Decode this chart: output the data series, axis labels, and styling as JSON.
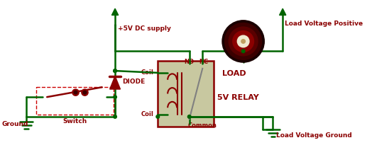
{
  "bg_color": "#ffffff",
  "wire_color": "#006400",
  "component_color": "#8b0000",
  "relay_fill": "#c8c8a0",
  "relay_border": "#8b0000",
  "text_color": "#8b0000",
  "labels": {
    "ground": "Ground",
    "switch": "Switch",
    "diode": "DIODE",
    "coil_top": "Coil",
    "coil_bot": "Coil",
    "no": "NO",
    "nc": "NC",
    "common": "Common",
    "relay": "5V RELAY",
    "load": "LOAD",
    "supply": "+5V DC supply",
    "load_pos": "Load Voltage Positive",
    "load_gnd": "Load Voltage Ground"
  },
  "figsize": [
    5.24,
    2.3
  ],
  "dpi": 100
}
